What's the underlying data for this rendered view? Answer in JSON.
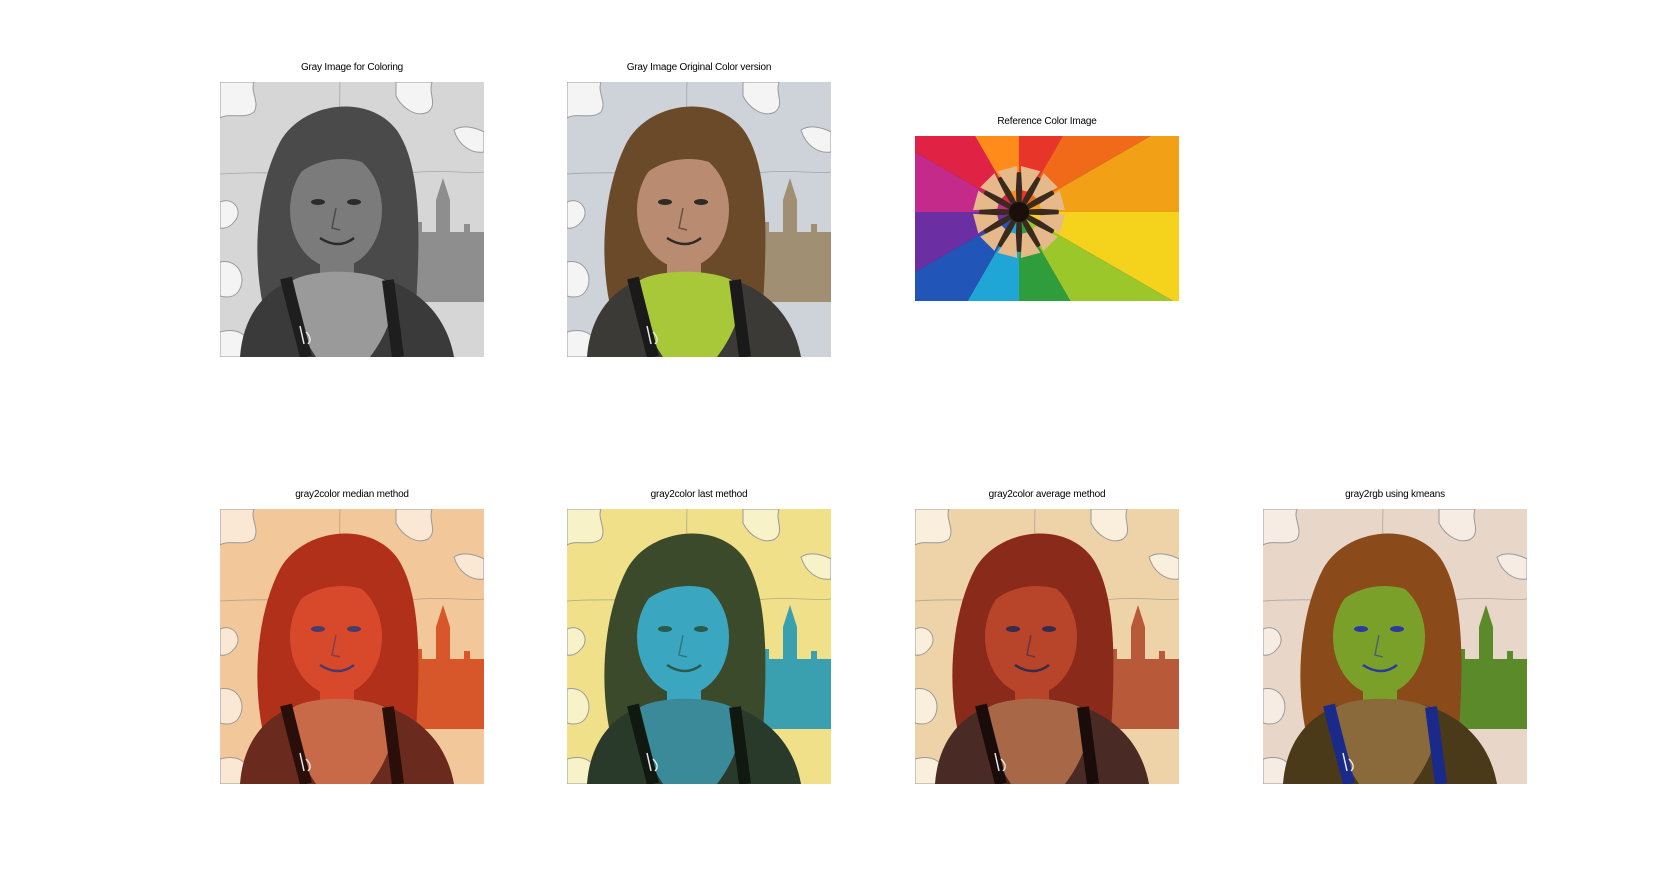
{
  "figure": {
    "panels": [
      {
        "id": "gray-input",
        "title": "Gray Image for Coloring",
        "kind": "portrait",
        "palette": {
          "sky": "#d6d6d6",
          "building": "#8e8e8e",
          "hair": "#4a4a4a",
          "skin": "#7b7b7b",
          "scarf": "#9a9a9a",
          "jacket": "#3a3a3a",
          "strap": "#1e1e1e",
          "shadow": "#2b2b2b",
          "puzzle": "#f4f4f4"
        }
      },
      {
        "id": "gray-original-color",
        "title": "Gray Image Original Color version",
        "kind": "portrait",
        "palette": {
          "sky": "#cdd3d8",
          "building": "#a08f72",
          "hair": "#6b4a2a",
          "skin": "#b98c72",
          "scarf": "#a8c83a",
          "jacket": "#3c3a36",
          "strap": "#1a1a1a",
          "shadow": "#2e2a26",
          "puzzle": "#f4f4f4"
        }
      },
      {
        "id": "reference-color",
        "title": "Reference Color Image",
        "kind": "pencils",
        "palette": {
          "pencils": [
            "#e8352a",
            "#f06a1a",
            "#f2a116",
            "#f5d21c",
            "#9cc72a",
            "#2f9d3b",
            "#1fa6d6",
            "#2255b8",
            "#6b2fa3",
            "#c42a8a",
            "#e02244",
            "#ff8c1a"
          ],
          "wood": "#e6b98a",
          "center": "#1a0f0a"
        }
      },
      {
        "id": "median-method",
        "title": "gray2color median method",
        "kind": "portrait",
        "palette": {
          "sky": "#f2c89a",
          "building": "#d8572a",
          "hair": "#b0301a",
          "skin": "#d8482a",
          "scarf": "#c86a48",
          "jacket": "#6a2a1e",
          "strap": "#2a0e0a",
          "shadow": "#4a3a6a",
          "puzzle": "#fbe8d4"
        }
      },
      {
        "id": "last-method",
        "title": "gray2color last method",
        "kind": "portrait",
        "palette": {
          "sky": "#f0e08a",
          "building": "#3aa0b0",
          "hair": "#3a4a2a",
          "skin": "#3aa6c0",
          "scarf": "#3a8a9a",
          "jacket": "#2a3a2a",
          "strap": "#101810",
          "shadow": "#2a5a4a",
          "puzzle": "#f8f2c8"
        }
      },
      {
        "id": "average-method",
        "title": "gray2color average method",
        "kind": "portrait",
        "palette": {
          "sky": "#eed2a8",
          "building": "#b85a3a",
          "hair": "#8a2a1a",
          "skin": "#b8442a",
          "scarf": "#a86848",
          "jacket": "#4a2a24",
          "strap": "#1a0c0a",
          "shadow": "#3a2a4a",
          "puzzle": "#faeedc"
        }
      },
      {
        "id": "kmeans",
        "title": "gray2rgb using kmeans",
        "kind": "portrait",
        "palette": {
          "sky": "#e8d6c8",
          "building": "#5a8a2a",
          "hair": "#8a4a1a",
          "skin": "#7aa02a",
          "scarf": "#8a6a3a",
          "jacket": "#4a3a1a",
          "strap": "#1a2a8a",
          "shadow": "#2a3aa0",
          "puzzle": "#f6ece4"
        }
      }
    ]
  }
}
